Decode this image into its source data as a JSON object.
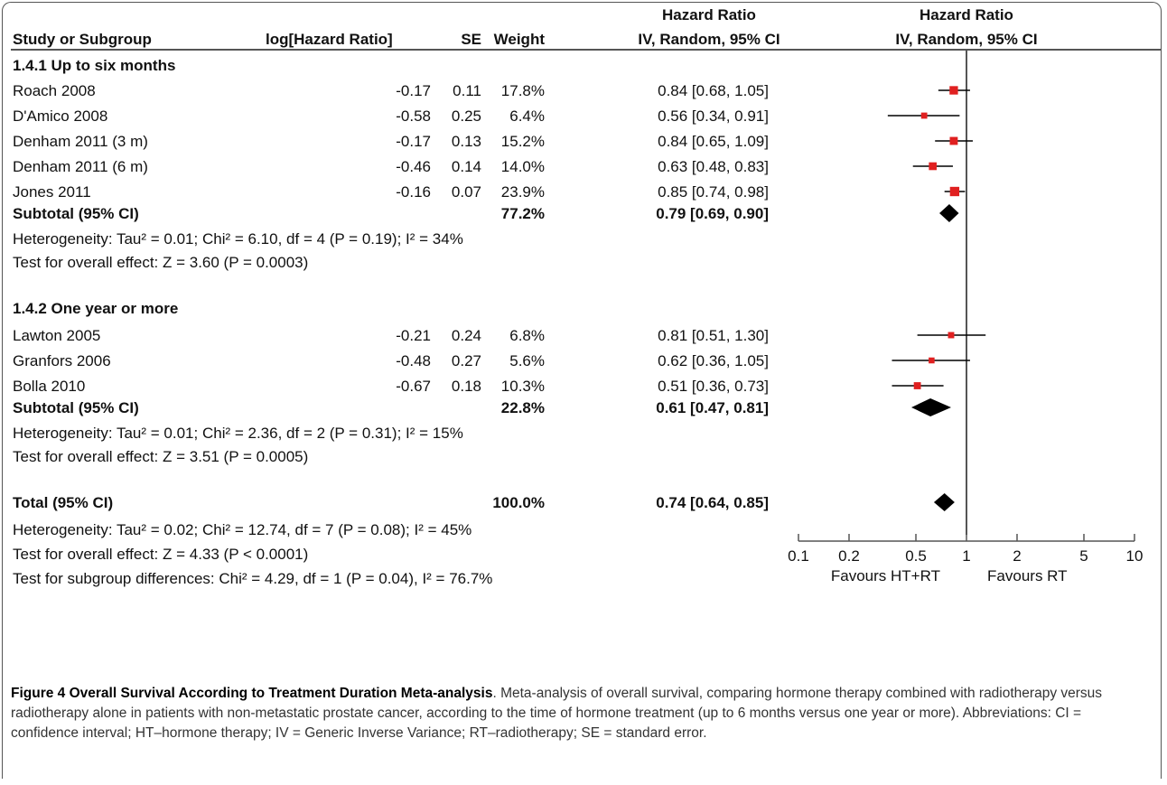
{
  "headers": {
    "study": "Study or Subgroup",
    "loghr": "log[Hazard Ratio]",
    "se": "SE",
    "weight": "Weight",
    "hr_top": "Hazard Ratio",
    "hr_bottom": "IV, Random, 95% CI",
    "plot_top": "Hazard Ratio",
    "plot_bottom": "IV, Random, 95% CI"
  },
  "groups": [
    {
      "title": "1.4.1 Up to six months",
      "studies": [
        {
          "study": "Roach 2008",
          "loghr": "-0.17",
          "se": "0.11",
          "weight": "17.8%",
          "ci_text": "0.84 [0.68, 1.05]"
        },
        {
          "study": "D'Amico 2008",
          "loghr": "-0.58",
          "se": "0.25",
          "weight": "6.4%",
          "ci_text": "0.56 [0.34, 0.91]"
        },
        {
          "study": "Denham 2011 (3 m)",
          "loghr": "-0.17",
          "se": "0.13",
          "weight": "15.2%",
          "ci_text": "0.84 [0.65, 1.09]"
        },
        {
          "study": "Denham 2011 (6 m)",
          "loghr": "-0.46",
          "se": "0.14",
          "weight": "14.0%",
          "ci_text": "0.63 [0.48, 0.83]"
        },
        {
          "study": "Jones 2011",
          "loghr": "-0.16",
          "se": "0.07",
          "weight": "23.9%",
          "ci_text": "0.85 [0.74, 0.98]"
        }
      ],
      "subtotal": {
        "label": "Subtotal (95% CI)",
        "weight": "77.2%",
        "ci_text": "0.79 [0.69, 0.90]"
      },
      "heterogeneity": "Heterogeneity: Tau² = 0.01; Chi² = 6.10, df = 4 (P = 0.19); I² = 34%",
      "overall": "Test for overall effect: Z = 3.60 (P = 0.0003)"
    },
    {
      "title": "1.4.2 One year or more",
      "studies": [
        {
          "study": "Lawton 2005",
          "loghr": "-0.21",
          "se": "0.24",
          "weight": "6.8%",
          "ci_text": "0.81 [0.51, 1.30]"
        },
        {
          "study": "Granfors 2006",
          "loghr": "-0.48",
          "se": "0.27",
          "weight": "5.6%",
          "ci_text": "0.62 [0.36, 1.05]"
        },
        {
          "study": "Bolla 2010",
          "loghr": "-0.67",
          "se": "0.18",
          "weight": "10.3%",
          "ci_text": "0.51 [0.36, 0.73]"
        }
      ],
      "subtotal": {
        "label": "Subtotal (95% CI)",
        "weight": "22.8%",
        "ci_text": "0.61 [0.47, 0.81]"
      },
      "heterogeneity": "Heterogeneity: Tau² = 0.01; Chi² = 2.36, df = 2 (P = 0.31); I² = 15%",
      "overall": "Test for overall effect: Z = 3.51 (P = 0.0005)"
    }
  ],
  "total": {
    "label": "Total (95% CI)",
    "weight": "100.0%",
    "ci_text": "0.74 [0.64, 0.85]",
    "heterogeneity": "Heterogeneity: Tau² = 0.02; Chi² = 12.74, df = 7 (P = 0.08); I² = 45%",
    "overall": "Test for overall effect: Z = 4.33 (P < 0.0001)",
    "subgroup": "Test for subgroup differences: Chi² = 4.29, df = 1 (P = 0.04), I² = 76.7%"
  },
  "axis": {
    "ticks": [
      "0.1",
      "0.2",
      "0.5",
      "1",
      "2",
      "5",
      "10"
    ],
    "favours_left": "Favours HT+RT",
    "favours_right": "Favours RT"
  },
  "colors": {
    "marker": "#e02020",
    "diamond": "#000000",
    "line": "#000000"
  },
  "chart_data": {
    "type": "forest",
    "x_scale": "log",
    "xlim": [
      0.1,
      10
    ],
    "reference_line": 1,
    "studies": [
      {
        "name": "Roach 2008",
        "hr": 0.84,
        "lower": 0.68,
        "upper": 1.05,
        "weight": 17.8
      },
      {
        "name": "D'Amico 2008",
        "hr": 0.56,
        "lower": 0.34,
        "upper": 0.91,
        "weight": 6.4
      },
      {
        "name": "Denham 2011 (3 m)",
        "hr": 0.84,
        "lower": 0.65,
        "upper": 1.09,
        "weight": 15.2
      },
      {
        "name": "Denham 2011 (6 m)",
        "hr": 0.63,
        "lower": 0.48,
        "upper": 0.83,
        "weight": 14.0
      },
      {
        "name": "Jones 2011",
        "hr": 0.85,
        "lower": 0.74,
        "upper": 0.98,
        "weight": 23.9
      },
      {
        "name": "Lawton 2005",
        "hr": 0.81,
        "lower": 0.51,
        "upper": 1.3,
        "weight": 6.8
      },
      {
        "name": "Granfors 2006",
        "hr": 0.62,
        "lower": 0.36,
        "upper": 1.05,
        "weight": 5.6
      },
      {
        "name": "Bolla 2010",
        "hr": 0.51,
        "lower": 0.36,
        "upper": 0.73,
        "weight": 10.3
      }
    ],
    "summaries": [
      {
        "name": "Subtotal (95% CI) 1.4.1",
        "hr": 0.79,
        "lower": 0.69,
        "upper": 0.9,
        "weight": 77.2
      },
      {
        "name": "Subtotal (95% CI) 1.4.2",
        "hr": 0.61,
        "lower": 0.47,
        "upper": 0.81,
        "weight": 22.8
      },
      {
        "name": "Total (95% CI)",
        "hr": 0.74,
        "lower": 0.64,
        "upper": 0.85,
        "weight": 100.0
      }
    ]
  },
  "caption": {
    "label": "Figure 4 Overall Survival According to Treatment Duration Meta-analysis",
    "text": ". Meta-analysis of overall survival, comparing hormone therapy combined with radiotherapy versus radiotherapy alone in patients with non-metastatic prostate cancer, according to the time of hormone treatment (up to 6 months versus one year or more). Abbreviations: CI = confidence interval; HT–hormone therapy; IV = Generic Inverse Variance; RT–radiotherapy; SE = standard error."
  }
}
